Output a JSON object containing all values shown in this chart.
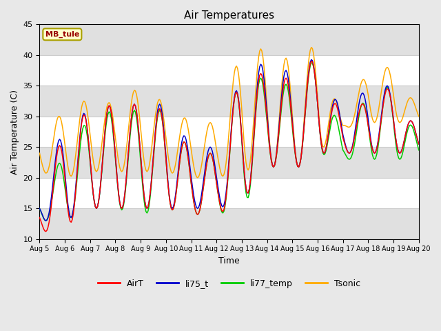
{
  "title": "Air Temperatures",
  "xlabel": "Time",
  "ylabel": "Air Temperature (C)",
  "ylim": [
    10,
    45
  ],
  "station_label": "MB_tule",
  "legend_entries": [
    "AirT",
    "li75_t",
    "li77_temp",
    "Tsonic"
  ],
  "line_colors": [
    "#ff0000",
    "#0000cc",
    "#00cc00",
    "#ffaa00"
  ],
  "x_tick_labels": [
    "Aug 5",
    "Aug 6",
    "Aug 7",
    "Aug 8",
    "Aug 9",
    "Aug 10",
    "Aug 11",
    "Aug 12",
    "Aug 13",
    "Aug 14",
    "Aug 15",
    "Aug 16",
    "Aug 17",
    "Aug 18",
    "Aug 19",
    "Aug 20"
  ],
  "bg_color": "#e8e8e8",
  "band_white": "#ffffff",
  "band_gray": "#e0e0e0",
  "grid_color": "#cccccc",
  "yticks": [
    10,
    15,
    20,
    25,
    30,
    35,
    40,
    45
  ],
  "figwidth": 6.4,
  "figheight": 4.8,
  "dpi": 100
}
